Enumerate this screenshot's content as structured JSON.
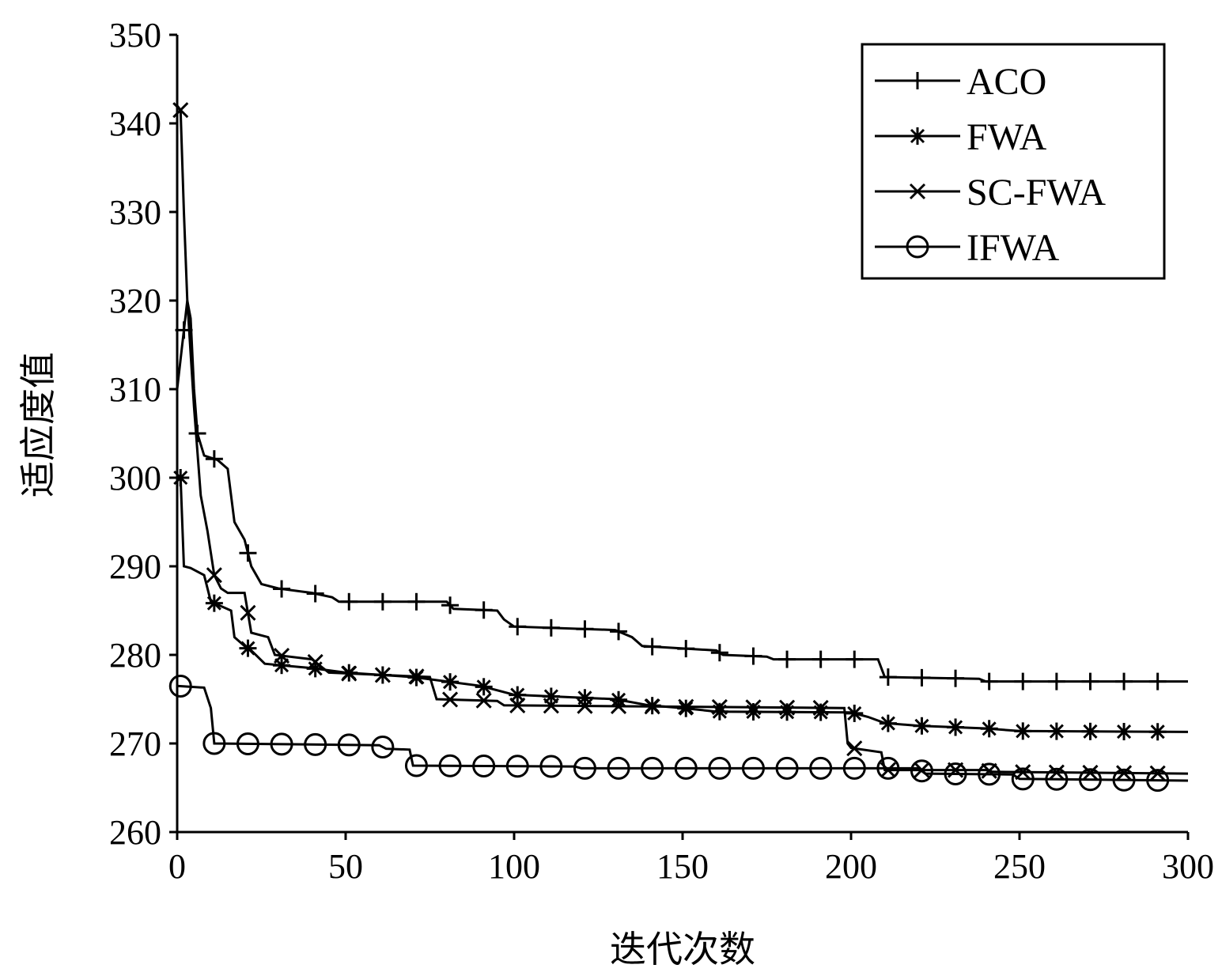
{
  "chart_data": {
    "type": "line",
    "title": "",
    "xlabel": "迭代次数",
    "ylabel": "适应度值",
    "xlim": [
      0,
      300
    ],
    "ylim": [
      260,
      350
    ],
    "x_ticks": [
      "0",
      "50",
      "100",
      "150",
      "200",
      "250",
      "300"
    ],
    "y_ticks": [
      "260",
      "270",
      "280",
      "290",
      "300",
      "310",
      "320",
      "330",
      "340",
      "350"
    ],
    "grid": false,
    "legend_position": "top-right",
    "series": [
      {
        "name": "ACO",
        "marker": "plus",
        "points": [
          [
            0,
            310
          ],
          [
            3,
            320
          ],
          [
            4,
            318
          ],
          [
            5,
            310
          ],
          [
            6,
            305
          ],
          [
            8,
            302.5
          ],
          [
            12,
            302
          ],
          [
            15,
            301
          ],
          [
            17,
            295
          ],
          [
            20,
            293
          ],
          [
            22,
            290
          ],
          [
            25,
            288
          ],
          [
            30,
            287.5
          ],
          [
            40,
            287
          ],
          [
            46,
            286.5
          ],
          [
            48,
            286
          ],
          [
            80,
            286
          ],
          [
            82,
            285.2
          ],
          [
            95,
            285
          ],
          [
            97,
            284
          ],
          [
            100,
            283.2
          ],
          [
            130,
            282.8
          ],
          [
            135,
            282
          ],
          [
            138,
            281
          ],
          [
            160,
            280.5
          ],
          [
            162,
            280
          ],
          [
            175,
            279.8
          ],
          [
            177,
            279.5
          ],
          [
            208,
            279.5
          ],
          [
            210,
            277.5
          ],
          [
            238,
            277.3
          ],
          [
            240,
            277
          ],
          [
            300,
            277
          ]
        ],
        "marker_x": [
          2,
          6,
          11,
          21,
          31,
          41,
          51,
          61,
          71,
          81,
          91,
          101,
          111,
          121,
          131,
          141,
          151,
          161,
          171,
          181,
          191,
          201,
          211,
          221,
          231,
          241,
          251,
          261,
          271,
          281,
          291
        ]
      },
      {
        "name": "FWA",
        "marker": "asterisk",
        "points": [
          [
            0,
            300
          ],
          [
            1,
            300
          ],
          [
            2,
            290
          ],
          [
            4,
            289.8
          ],
          [
            8,
            289
          ],
          [
            10,
            286
          ],
          [
            13,
            285.5
          ],
          [
            16,
            285
          ],
          [
            17,
            282
          ],
          [
            20,
            281
          ],
          [
            22,
            280.5
          ],
          [
            26,
            279
          ],
          [
            40,
            278.5
          ],
          [
            50,
            278
          ],
          [
            70,
            277.5
          ],
          [
            80,
            277
          ],
          [
            90,
            276.5
          ],
          [
            100,
            275.5
          ],
          [
            130,
            275
          ],
          [
            140,
            274.3
          ],
          [
            150,
            274
          ],
          [
            160,
            273.6
          ],
          [
            200,
            273.5
          ],
          [
            205,
            273
          ],
          [
            210,
            272.3
          ],
          [
            220,
            272
          ],
          [
            240,
            271.7
          ],
          [
            250,
            271.4
          ],
          [
            300,
            271.3
          ]
        ],
        "marker_x": [
          1,
          11,
          21,
          31,
          41,
          51,
          61,
          71,
          81,
          91,
          101,
          111,
          121,
          131,
          141,
          151,
          161,
          171,
          181,
          191,
          201,
          211,
          221,
          231,
          241,
          251,
          261,
          271,
          281,
          291
        ]
      },
      {
        "name": "SC-FWA",
        "marker": "cross",
        "points": [
          [
            0,
            342
          ],
          [
            1,
            341.5
          ],
          [
            2,
            330
          ],
          [
            3,
            320
          ],
          [
            5,
            308
          ],
          [
            7,
            298
          ],
          [
            9,
            294
          ],
          [
            11,
            289
          ],
          [
            13,
            287.5
          ],
          [
            15,
            287
          ],
          [
            20,
            287
          ],
          [
            22,
            282.5
          ],
          [
            27,
            282
          ],
          [
            29,
            280
          ],
          [
            40,
            279.5
          ],
          [
            45,
            278
          ],
          [
            75,
            277.5
          ],
          [
            77,
            275
          ],
          [
            95,
            274.8
          ],
          [
            97,
            274.3
          ],
          [
            198,
            274
          ],
          [
            199,
            270
          ],
          [
            200,
            269.5
          ],
          [
            209,
            269
          ],
          [
            210,
            267
          ],
          [
            240,
            267
          ],
          [
            242,
            266.8
          ],
          [
            300,
            266.6
          ]
        ],
        "marker_x": [
          1,
          11,
          21,
          31,
          41,
          51,
          61,
          71,
          81,
          91,
          101,
          111,
          121,
          131,
          141,
          151,
          161,
          171,
          181,
          191,
          201,
          211,
          221,
          231,
          241,
          251,
          261,
          271,
          281,
          291
        ]
      },
      {
        "name": "IFWA",
        "marker": "circle",
        "points": [
          [
            0,
            276.5
          ],
          [
            8,
            276.3
          ],
          [
            10,
            274
          ],
          [
            11,
            270
          ],
          [
            60,
            269.8
          ],
          [
            62,
            269.4
          ],
          [
            69,
            269.3
          ],
          [
            70,
            267.5
          ],
          [
            118,
            267.4
          ],
          [
            120,
            267.2
          ],
          [
            220,
            267.2
          ],
          [
            222,
            266.6
          ],
          [
            248,
            266.5
          ],
          [
            250,
            266
          ],
          [
            300,
            265.8
          ]
        ],
        "marker_x": [
          1,
          11,
          21,
          31,
          41,
          51,
          61,
          71,
          81,
          91,
          101,
          111,
          121,
          131,
          141,
          151,
          161,
          171,
          181,
          191,
          201,
          211,
          221,
          231,
          241,
          251,
          261,
          271,
          281,
          291
        ]
      }
    ]
  }
}
